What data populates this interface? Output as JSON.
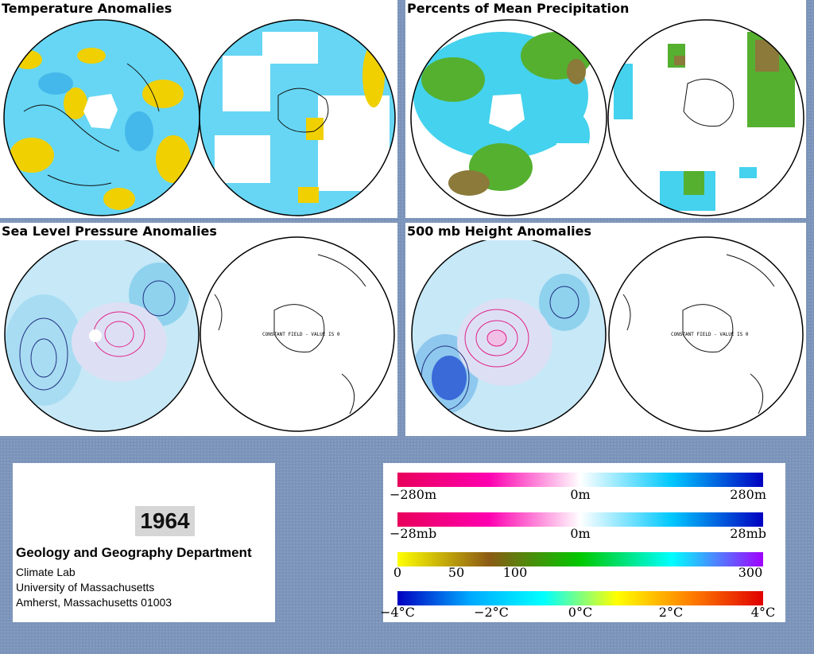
{
  "panels": [
    {
      "id": "temp",
      "title": "Temperature Anomalies"
    },
    {
      "id": "precip",
      "title": "Percents of Mean Precipitation"
    },
    {
      "id": "slp",
      "title": "Sea Level Pressure Anomalies",
      "field_note": "CONSTANT FIELD - VALUE IS 0"
    },
    {
      "id": "h500",
      "title": "500 mb Height Anomalies",
      "field_note": "CONSTANT FIELD - VALUE IS 0"
    }
  ],
  "info": {
    "year": "1964",
    "department": "Geology and Geography Department",
    "lab": "Climate Lab",
    "university": "University of Massachusetts",
    "city": "Amherst, Massachusetts 01003"
  },
  "legend": {
    "height_bar": {
      "ticks": [
        "−280m",
        "0m",
        "280m"
      ],
      "colors": [
        "#e8005a",
        "#ff00b0",
        "#ffffff",
        "#00c8ff",
        "#0000c0"
      ]
    },
    "pressure_bar": {
      "ticks": [
        "−28mb",
        "0m",
        "28mb"
      ],
      "colors": [
        "#e8005a",
        "#ff00b0",
        "#ffffff",
        "#00c8ff",
        "#0000c0"
      ]
    },
    "precip_bar": {
      "ticks": [
        "0",
        "50",
        "100",
        "300"
      ],
      "colors": [
        "#ffff00",
        "#8b5a14",
        "#00c800",
        "#00ffff",
        "#a000ff"
      ]
    },
    "temp_bar": {
      "ticks": [
        "−4°C",
        "−2°C",
        "0°C",
        "2°C",
        "4°C"
      ],
      "colors": [
        "#0000c0",
        "#00aaff",
        "#00ffff",
        "#ffff00",
        "#ff8000",
        "#e00000"
      ]
    }
  }
}
